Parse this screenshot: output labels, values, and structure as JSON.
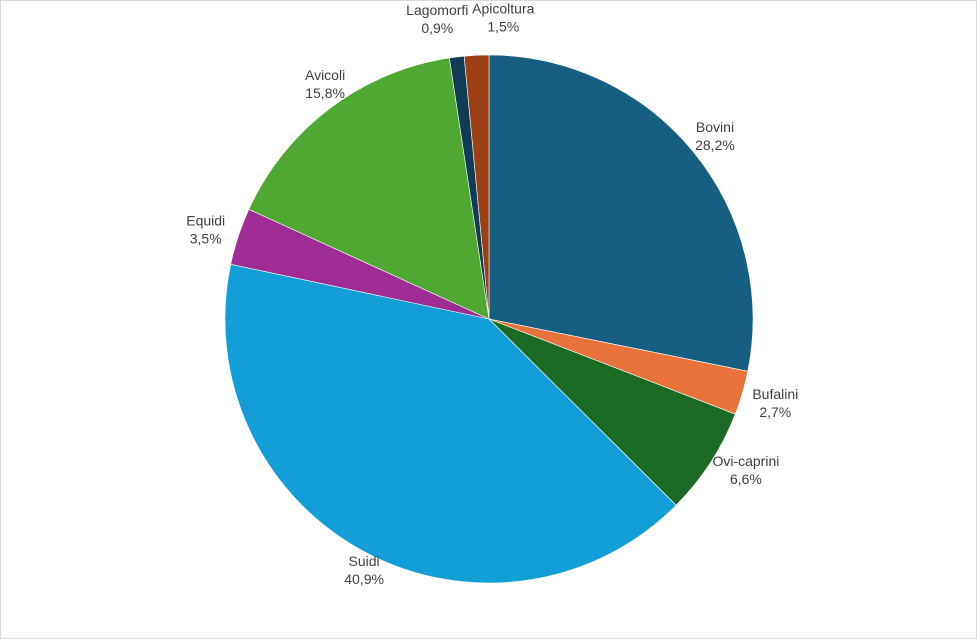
{
  "chart_data": {
    "type": "pie",
    "title": "",
    "slices": [
      {
        "label": "Bovini",
        "value": 28.2,
        "value_text": "28,2%",
        "color": "#175F82"
      },
      {
        "label": "Bufalini",
        "value": 2.7,
        "value_text": "2,7%",
        "color": "#E8733A"
      },
      {
        "label": "Ovi-caprini",
        "value": 6.6,
        "value_text": "6,6%",
        "color": "#1C6B24"
      },
      {
        "label": "Suidi",
        "value": 40.9,
        "value_text": "40,9%",
        "color": "#129FD7"
      },
      {
        "label": "Equidi",
        "value": 3.5,
        "value_text": "3,5%",
        "color": "#A02D95"
      },
      {
        "label": "Avicoli",
        "value": 15.8,
        "value_text": "15,8%",
        "color": "#4EA831"
      },
      {
        "label": "Lagomorfi",
        "value": 0.9,
        "value_text": "0,9%",
        "color": "#113C57"
      },
      {
        "label": "Apicoltura",
        "value": 1.5,
        "value_text": "1,5%",
        "color": "#9C4014"
      }
    ]
  }
}
